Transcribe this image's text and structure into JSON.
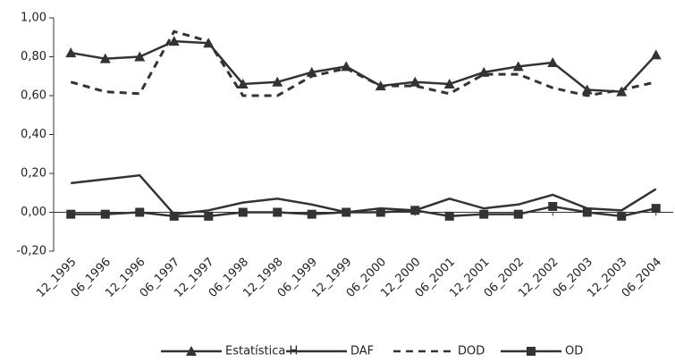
{
  "chart_data": {
    "type": "line",
    "categories": [
      "12_1995",
      "06_1996",
      "12_1996",
      "06_1997",
      "12_1997",
      "06_1998",
      "12_1998",
      "06_1999",
      "12_1999",
      "06_2000",
      "12_2000",
      "06_2001",
      "12_2001",
      "06_2002",
      "12_2002",
      "06_2003",
      "12_2003",
      "06_2004"
    ],
    "series": [
      {
        "name": "Estatística H",
        "color": "#333333",
        "marker": "triangle",
        "dash": "solid",
        "values": [
          0.82,
          0.79,
          0.8,
          0.88,
          0.87,
          0.66,
          0.67,
          0.72,
          0.75,
          0.65,
          0.67,
          0.66,
          0.72,
          0.75,
          0.77,
          0.63,
          0.62,
          0.81
        ]
      },
      {
        "name": "DAF",
        "color": "#333333",
        "marker": "none",
        "dash": "solid",
        "values": [
          0.15,
          0.17,
          0.19,
          -0.01,
          0.01,
          0.05,
          0.07,
          0.04,
          0.0,
          0.02,
          0.01,
          0.07,
          0.02,
          0.04,
          0.09,
          0.02,
          0.01,
          0.12
        ]
      },
      {
        "name": "DOD",
        "color": "#333333",
        "marker": "none",
        "dash": "dashed",
        "values": [
          0.67,
          0.62,
          0.61,
          0.93,
          0.88,
          0.6,
          0.6,
          0.7,
          0.74,
          0.65,
          0.65,
          0.61,
          0.71,
          0.71,
          0.64,
          0.6,
          0.63,
          0.67
        ]
      },
      {
        "name": "OD",
        "color": "#333333",
        "marker": "square",
        "dash": "solid",
        "values": [
          -0.01,
          -0.01,
          0.0,
          -0.02,
          -0.02,
          0.0,
          0.0,
          -0.01,
          0.0,
          0.0,
          0.01,
          -0.02,
          -0.01,
          -0.01,
          0.03,
          0.0,
          -0.02,
          0.02
        ]
      }
    ],
    "ylim": [
      -0.2,
      1.0
    ],
    "yticks": [
      {
        "value": -0.2,
        "label": "-0,20"
      },
      {
        "value": 0,
        "label": "0,00"
      },
      {
        "value": 0.2,
        "label": "0,20"
      },
      {
        "value": 0.4,
        "label": "0,40"
      },
      {
        "value": 0.6,
        "label": "0,60"
      },
      {
        "value": 0.8,
        "label": "0,80"
      },
      {
        "value": 1.0,
        "label": "1,00"
      }
    ],
    "grid": false,
    "legend": "bottom"
  }
}
